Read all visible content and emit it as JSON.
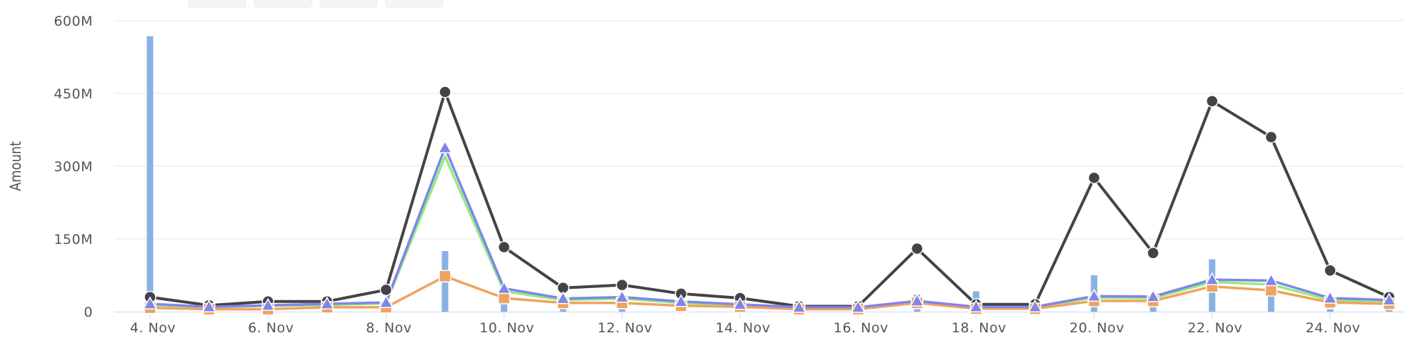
{
  "chart_data": {
    "type": "line",
    "title": "",
    "ylabel": "Amount",
    "xlabel": "",
    "ylim": [
      0,
      600000000
    ],
    "y_ticks": [
      0,
      150000000,
      300000000,
      450000000,
      600000000
    ],
    "y_tick_labels": [
      "0",
      "150M",
      "300M",
      "450M",
      "600M"
    ],
    "x_tick_labels": [
      "4. Nov",
      "6. Nov",
      "8. Nov",
      "10. Nov",
      "12. Nov",
      "14. Nov",
      "16. Nov",
      "18. Nov",
      "20. Nov",
      "22. Nov",
      "24. Nov"
    ],
    "x_tick_days": [
      4,
      6,
      8,
      10,
      12,
      14,
      16,
      18,
      20,
      22,
      24
    ],
    "x": [
      4,
      5,
      6,
      7,
      8,
      9,
      10,
      11,
      12,
      13,
      14,
      15,
      16,
      17,
      18,
      19,
      20,
      21,
      22,
      23,
      24,
      25
    ],
    "grid": true,
    "legend": "top (cut off, unreadable)",
    "series": [
      {
        "kind": "column",
        "color": "#8ab1e3",
        "values": [
          568000000,
          3000000,
          3000000,
          3000000,
          12000000,
          125000000,
          22000000,
          10000000,
          5000000,
          4000000,
          3000000,
          2000000,
          2000000,
          35000000,
          42000000,
          3000000,
          75000000,
          18000000,
          108000000,
          38000000,
          5000000,
          10000000
        ]
      },
      {
        "kind": "line",
        "color": "#434348",
        "marker": "circle",
        "values": [
          30000000,
          13000000,
          21000000,
          21000000,
          45000000,
          453000000,
          133000000,
          49000000,
          55000000,
          37000000,
          28000000,
          11000000,
          11000000,
          130000000,
          15000000,
          15000000,
          276000000,
          121000000,
          434000000,
          360000000,
          85000000,
          30000000
        ]
      },
      {
        "kind": "line",
        "color": "#90ed7d",
        "marker": "none",
        "values": [
          14000000,
          9000000,
          12000000,
          14000000,
          17000000,
          320000000,
          42000000,
          24000000,
          27000000,
          18000000,
          13000000,
          8000000,
          8000000,
          20000000,
          9000000,
          9000000,
          29000000,
          28000000,
          61000000,
          56000000,
          24000000,
          20000000
        ]
      },
      {
        "kind": "line",
        "color": "#8085e9",
        "marker": "triangle",
        "values": [
          16000000,
          10000000,
          13000000,
          16000000,
          19000000,
          338000000,
          48000000,
          27000000,
          30000000,
          21000000,
          15000000,
          9000000,
          9000000,
          22000000,
          10000000,
          10000000,
          32000000,
          31000000,
          66000000,
          64000000,
          28000000,
          24000000
        ]
      },
      {
        "kind": "line",
        "color": "#f0a35e",
        "marker": "square",
        "values": [
          8000000,
          5000000,
          5000000,
          9000000,
          9000000,
          73000000,
          28000000,
          18000000,
          18000000,
          12000000,
          10000000,
          5000000,
          5000000,
          18000000,
          6000000,
          6000000,
          22000000,
          22000000,
          52000000,
          44000000,
          19000000,
          16000000
        ]
      }
    ]
  }
}
